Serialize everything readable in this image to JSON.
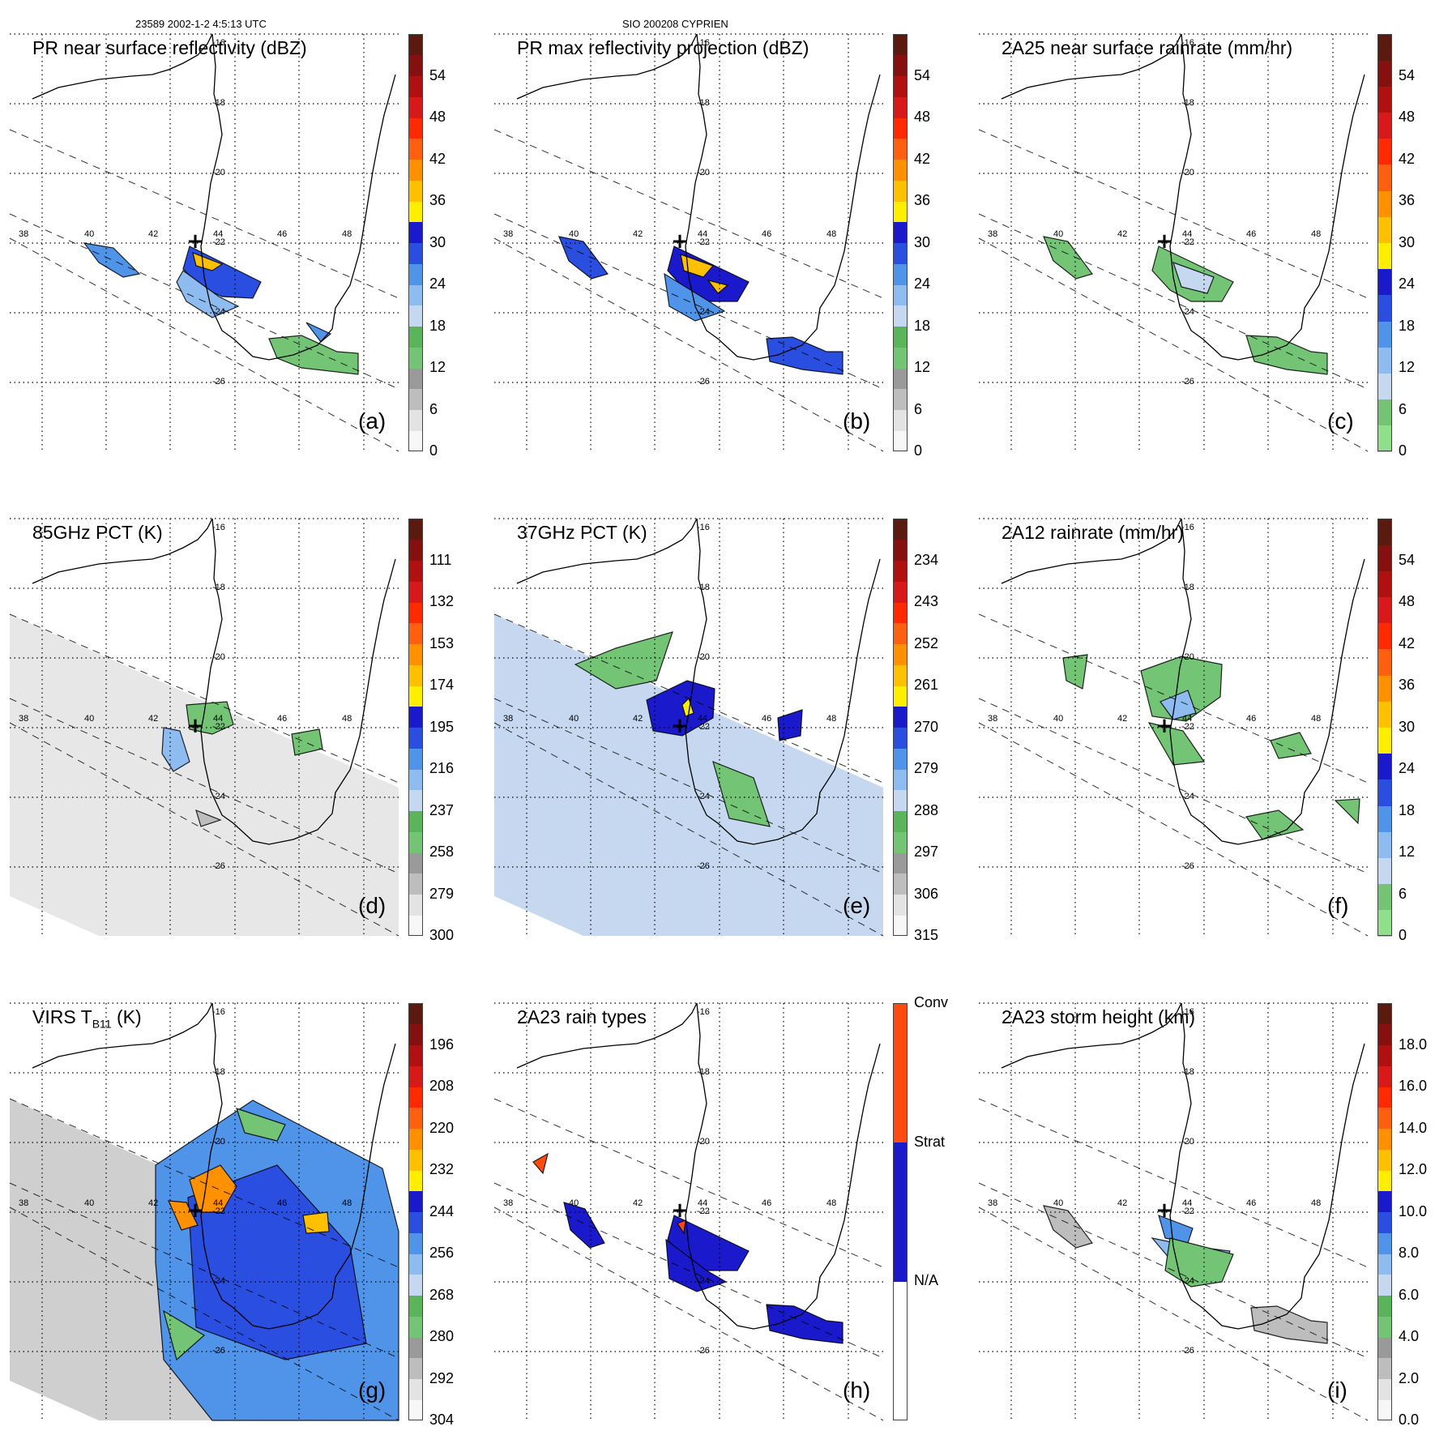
{
  "header": {
    "orbit_time": "23589 2002-1-2 4:5:13 UTC",
    "storm": "SIO 200208 CYPRIEN"
  },
  "map_labels": {
    "lon": [
      "38",
      "40",
      "42",
      "44",
      "46",
      "48"
    ],
    "lat": [
      "-16",
      "-18",
      "-20",
      "-22",
      "-24",
      "-26"
    ]
  },
  "panels": [
    {
      "id": "a",
      "title": "PR near surface reflectivity (dBZ)",
      "letter": "(a)",
      "cbar": {
        "labels": [
          "0",
          "6",
          "12",
          "18",
          "24",
          "30",
          "36",
          "42",
          "48",
          "54"
        ],
        "colors": [
          "#f7f7f7",
          "#e3e3e3",
          "#bdbdbd",
          "#9a9a9a",
          "#74c476",
          "#5ab55a",
          "#c6d8ef",
          "#8ebcf0",
          "#4f94e8",
          "#2a4ee0",
          "#1a1acc",
          "#ffee00",
          "#ffc000",
          "#ff9000",
          "#ff6010",
          "#ff2a00",
          "#d71919",
          "#b01010",
          "#851010",
          "#5a1a10"
        ]
      }
    },
    {
      "id": "b",
      "title": "PR max reflectivity projection (dBZ)",
      "letter": "(b)",
      "cbar": {
        "labels": [
          "0",
          "6",
          "12",
          "18",
          "24",
          "30",
          "36",
          "42",
          "48",
          "54"
        ],
        "colors": [
          "#f7f7f7",
          "#e3e3e3",
          "#bdbdbd",
          "#9a9a9a",
          "#74c476",
          "#5ab55a",
          "#c6d8ef",
          "#8ebcf0",
          "#4f94e8",
          "#2a4ee0",
          "#1a1acc",
          "#ffee00",
          "#ffc000",
          "#ff9000",
          "#ff6010",
          "#ff2a00",
          "#d71919",
          "#b01010",
          "#851010",
          "#5a1a10"
        ]
      }
    },
    {
      "id": "c",
      "title": "2A25 near surface rainrate (mm/hr)",
      "letter": "(c)",
      "cbar": {
        "labels": [
          "0",
          "6",
          "12",
          "18",
          "24",
          "30",
          "36",
          "42",
          "48",
          "54"
        ],
        "colors": [
          "#8fe08a",
          "#74c476",
          "#c6d8ef",
          "#8ebcf0",
          "#4f94e8",
          "#2a4ee0",
          "#1a1acc",
          "#ffee00",
          "#ffc000",
          "#ff9000",
          "#ff6010",
          "#ff2a00",
          "#d71919",
          "#b01010",
          "#851010",
          "#5a1a10"
        ]
      }
    },
    {
      "id": "d",
      "title": "85GHz PCT (K)",
      "letter": "(d)",
      "cbar": {
        "labels": [
          "300",
          "279",
          "258",
          "237",
          "216",
          "195",
          "174",
          "153",
          "132",
          "111"
        ],
        "colors": [
          "#f7f7f7",
          "#e3e3e3",
          "#bdbdbd",
          "#9a9a9a",
          "#74c476",
          "#5ab55a",
          "#c6d8ef",
          "#8ebcf0",
          "#4f94e8",
          "#2a4ee0",
          "#1a1acc",
          "#ffee00",
          "#ffc000",
          "#ff9000",
          "#ff6010",
          "#ff2a00",
          "#d71919",
          "#b01010",
          "#851010",
          "#5a1a10"
        ]
      }
    },
    {
      "id": "e",
      "title": "37GHz PCT (K)",
      "letter": "(e)",
      "cbar": {
        "labels": [
          "315",
          "306",
          "297",
          "288",
          "279",
          "270",
          "261",
          "252",
          "243",
          "234"
        ],
        "colors": [
          "#f7f7f7",
          "#e3e3e3",
          "#bdbdbd",
          "#9a9a9a",
          "#74c476",
          "#5ab55a",
          "#c6d8ef",
          "#8ebcf0",
          "#4f94e8",
          "#2a4ee0",
          "#1a1acc",
          "#ffee00",
          "#ffc000",
          "#ff9000",
          "#ff6010",
          "#ff2a00",
          "#d71919",
          "#b01010",
          "#851010",
          "#5a1a10"
        ]
      }
    },
    {
      "id": "f",
      "title": "2A12 rainrate (mm/hr)",
      "letter": "(f)",
      "cbar": {
        "labels": [
          "0",
          "6",
          "12",
          "18",
          "24",
          "30",
          "36",
          "42",
          "48",
          "54"
        ],
        "colors": [
          "#8fe08a",
          "#74c476",
          "#c6d8ef",
          "#8ebcf0",
          "#4f94e8",
          "#2a4ee0",
          "#1a1acc",
          "#ffee00",
          "#ffc000",
          "#ff9000",
          "#ff6010",
          "#ff2a00",
          "#d71919",
          "#b01010",
          "#851010",
          "#5a1a10"
        ]
      }
    },
    {
      "id": "g",
      "title": "VIRS T",
      "title_sub": "B11",
      "title_tail": " (K)",
      "letter": "(g)",
      "cbar": {
        "labels": [
          "304",
          "292",
          "280",
          "268",
          "256",
          "244",
          "232",
          "220",
          "208",
          "196"
        ],
        "colors": [
          "#f7f7f7",
          "#e3e3e3",
          "#bdbdbd",
          "#9a9a9a",
          "#74c476",
          "#5ab55a",
          "#c6d8ef",
          "#8ebcf0",
          "#4f94e8",
          "#2a4ee0",
          "#1a1acc",
          "#ffee00",
          "#ffc000",
          "#ff9000",
          "#ff6010",
          "#ff2a00",
          "#d71919",
          "#b01010",
          "#851010",
          "#5a1a10"
        ]
      }
    },
    {
      "id": "h",
      "title": "2A23 rain types",
      "letter": "(h)",
      "cbar": {
        "labels": [
          "N/A",
          "Strat",
          "Conv"
        ],
        "colors": [
          "#ffffff",
          "#1a1acc",
          "#ff4a10"
        ]
      }
    },
    {
      "id": "i",
      "title": "2A23 storm height (km)",
      "letter": "(i)",
      "cbar": {
        "labels": [
          "0.0",
          "2.0",
          "4.0",
          "6.0",
          "8.0",
          "10.0",
          "12.0",
          "14.0",
          "16.0",
          "18.0"
        ],
        "colors": [
          "#f7f7f7",
          "#e3e3e3",
          "#bdbdbd",
          "#9a9a9a",
          "#74c476",
          "#5ab55a",
          "#c6d8ef",
          "#8ebcf0",
          "#4f94e8",
          "#2a4ee0",
          "#1a1acc",
          "#ffee00",
          "#ffc000",
          "#ff9000",
          "#ff6010",
          "#ff2a00",
          "#d71919",
          "#b01010",
          "#851010",
          "#5a1a10"
        ]
      }
    }
  ]
}
